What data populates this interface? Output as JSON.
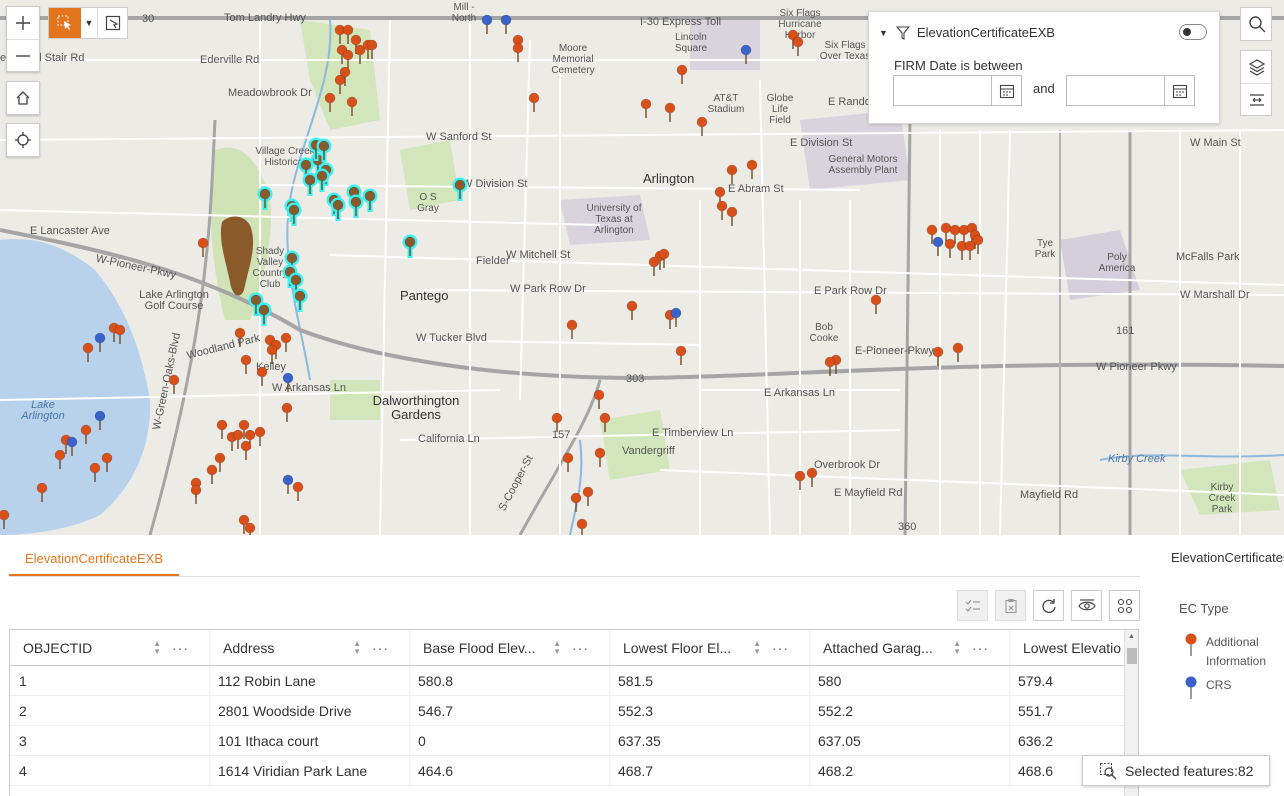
{
  "map": {
    "labels": {
      "tom_landry": "Tom Landry Hwy",
      "i30": "I-30 Express Toll",
      "edgerville": "Ederville Rd",
      "brentwood": "entwood Stair Rd",
      "meadowbrook": "Meadowbrook Dr",
      "arlington": "Arlington",
      "pantego": "Pantego",
      "dalworthington": "Dalworthington Gardens",
      "lake_arlington": "Lake Arlington",
      "lake_arlington_golf": "Lake Arlington Golf Course",
      "uta": "University of Texas at Arlington",
      "att": "AT&T Stadium",
      "globe": "Globe Life Field",
      "gm": "General Motors Assembly Plant",
      "six_flags_hh": "Six Flags Hurricane Harbor",
      "six_flags_ot": "Six Flags Over Texas",
      "lincoln": "Lincoln Square",
      "moore": "Moore Memorial Cemetery",
      "mill": "Mill - North",
      "shady_valley": "Shady Valley Country Club",
      "village_creek": "Village Creek Historical",
      "og": "O S Gray",
      "fielder": "Fielder",
      "pioneer_w": "W-Pioneer-Pkwy",
      "pioneer_e": "E-Pioneer-Pkwy",
      "w_pioneer_e": "W Pioneer Pkwy",
      "division": "W Division St",
      "abram": "E Abram St",
      "lancaster": "E Lancaster Ave",
      "mitchell": "W Mitchell St",
      "park_row_w": "W Park Row Dr",
      "park_row_e": "E Park Row Dr",
      "tucker": "W Tucker Blvd",
      "arkansas_w": "W Arkansas Ln",
      "arkansas_e": "E Arkansas Ln",
      "timberview": "E Timberview Ln",
      "mayfield": "E Mayfield Rd",
      "mayfield2": "Mayfield Rd",
      "california": "California Ln",
      "green_oaks": "W-Green-Oaks-Blvd",
      "cooper": "S-Cooper-St",
      "vandergriff": "Vandergriff",
      "bob_cooke": "Bob Cooke",
      "tye_park": "Tye Park",
      "poly": "Poly America",
      "mcfalls": "McFalls Park",
      "marshall": "W Marshall Dr",
      "kirby_creek": "Kirby Creek",
      "kirby_park": "Kirby Creek Park",
      "randol": "E Randol",
      "division_e": "E Division St",
      "main": "W Main St",
      "woodland": "Woodland Park",
      "kelley": "Kelley",
      "sanford": "W Sanford St",
      "sh303": "303",
      "hwy360": "360",
      "hwy30": "30",
      "hwy157": "157",
      "hwy161": "161",
      "overbrook": "Overbrook Dr"
    }
  },
  "filter": {
    "title": "ElevationCertificateEXB",
    "label": "FIRM Date is between",
    "and": "and",
    "start_value": "",
    "end_value": ""
  },
  "table": {
    "tab_label": "ElevationCertificateEXB",
    "columns": [
      "OBJECTID",
      "Address",
      "Base Flood Elev...",
      "Lowest Floor El...",
      "Attached Garag...",
      "Lowest Elevatio"
    ],
    "rows": [
      [
        "1",
        "112 Robin Lane",
        "580.8",
        "581.5",
        "580",
        "579.4"
      ],
      [
        "2",
        "2801 Woodside Drive",
        "546.7",
        "552.3",
        "552.2",
        "551.7"
      ],
      [
        "3",
        "101 Ithaca court",
        "0",
        "637.35",
        "637.05",
        "636.2"
      ],
      [
        "4",
        "1614 Viridian Park Lane",
        "464.6",
        "468.7",
        "468.2",
        "468.6"
      ]
    ]
  },
  "legend": {
    "title": "ElevationCertificatesEXB",
    "subtitle": "EC Type",
    "items": [
      {
        "label": "Additional Information",
        "color": "#d94f19"
      },
      {
        "label": "CRS",
        "color": "#3a62c9"
      }
    ]
  },
  "selected": {
    "label": "Selected features:82"
  },
  "colors": {
    "accent": "#e4751c",
    "pin_orange": "#d94f19",
    "pin_blue": "#3a62c9",
    "cyan_highlight": "#3ff0f0",
    "brown_cluster": "#8b5a2b"
  }
}
